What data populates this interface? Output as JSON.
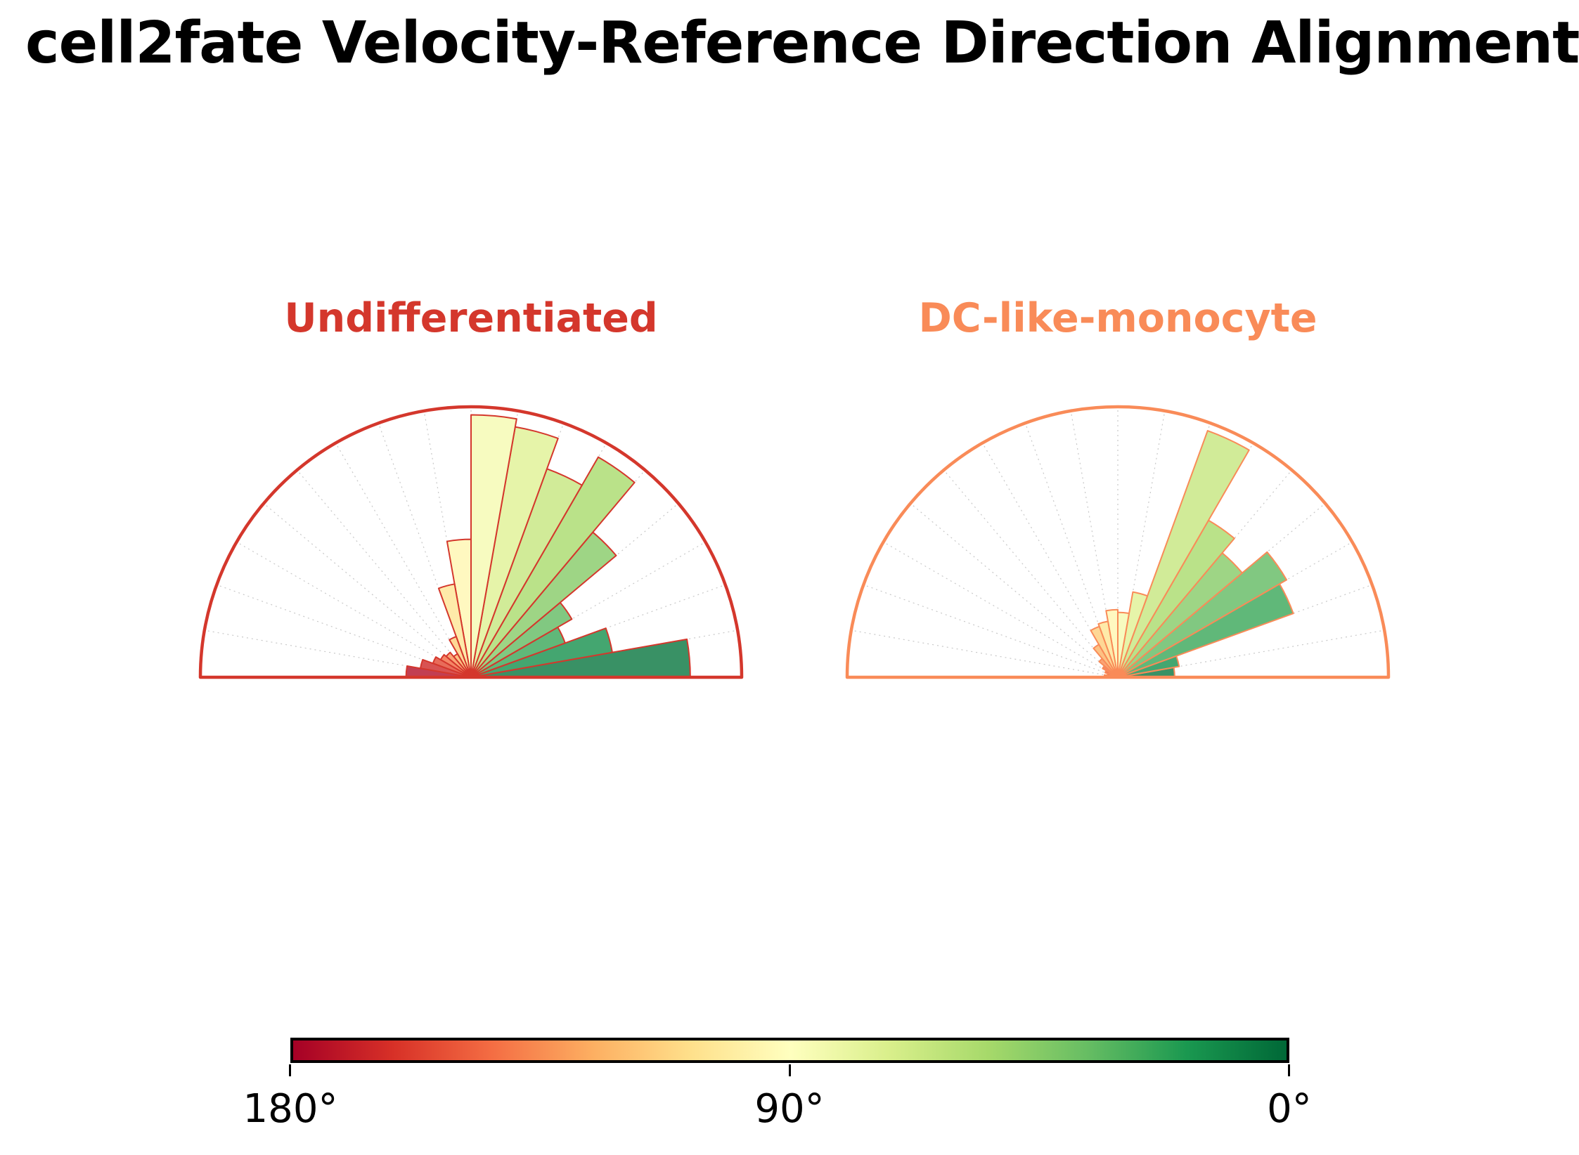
{
  "figure": {
    "title": "cell2fate Velocity-Reference Direction Alignment"
  },
  "chart_data": [
    {
      "type": "bar",
      "subtype": "polar-half-rose-histogram",
      "title": "Undifferentiated",
      "accent_color": "#d4372c",
      "angle_range_deg": [
        0,
        180
      ],
      "bin_width_deg": 10,
      "categories": [
        "0-10°",
        "10-20°",
        "20-30°",
        "30-40°",
        "40-50°",
        "50-60°",
        "60-70°",
        "70-80°",
        "80-90°",
        "90-100°",
        "100-110°",
        "110-120°",
        "120-130°",
        "130-140°",
        "140-150°",
        "150-160°",
        "160-170°",
        "170-180°"
      ],
      "values": [
        0.81,
        0.53,
        0.37,
        0.43,
        0.7,
        0.94,
        0.82,
        0.94,
        0.97,
        0.51,
        0.35,
        0.16,
        0.1,
        0.12,
        0.13,
        0.15,
        0.19,
        0.24
      ],
      "r_range": [
        0,
        1
      ],
      "grid": "radial dotted every 10°"
    },
    {
      "type": "bar",
      "subtype": "polar-half-rose-histogram",
      "title": "DC-like-monocyte",
      "accent_color": "#f98b58",
      "angle_range_deg": [
        0,
        180
      ],
      "bin_width_deg": 10,
      "categories": [
        "0-10°",
        "10-20°",
        "20-30°",
        "30-40°",
        "40-50°",
        "50-60°",
        "60-70°",
        "70-80°",
        "80-90°",
        "90-100°",
        "100-110°",
        "110-120°",
        "120-130°",
        "130-140°",
        "140-150°",
        "150-160°",
        "160-170°",
        "170-180°"
      ],
      "values": [
        0.21,
        0.23,
        0.69,
        0.72,
        0.6,
        0.67,
        0.97,
        0.32,
        0.24,
        0.25,
        0.21,
        0.2,
        0.14,
        0.09,
        0.065,
        0.05,
        0.04,
        0.05
      ],
      "r_range": [
        0,
        1
      ],
      "grid": "radial dotted every 10°"
    }
  ],
  "bin_fill_colors": [
    "#399165",
    "#44a670",
    "#60b879",
    "#81c881",
    "#9ed585",
    "#bae289",
    "#d1eb98",
    "#e6f4a9",
    "#f7fbc0",
    "#fff8c0",
    "#feeaa9",
    "#fed795",
    "#fdc183",
    "#faa475",
    "#f58666",
    "#e86c5a",
    "#d85352",
    "#c23e52"
  ],
  "gridline_color": "#c8c8c8",
  "colorbar": {
    "gradient_stops": [
      "#a50026",
      "#d73027",
      "#f46d43",
      "#fdae61",
      "#fee08b",
      "#ffffbf",
      "#d9ef8b",
      "#a6d96a",
      "#66bd63",
      "#1a9850",
      "#006837"
    ],
    "tick_labels": [
      "180°",
      "90°",
      "0°"
    ]
  }
}
